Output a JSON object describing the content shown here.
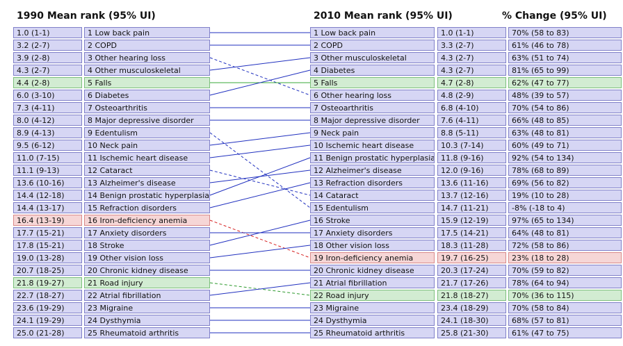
{
  "headers": {
    "left": "1990 Mean rank (95% UI)",
    "mid": "2010 Mean rank (95% UI)",
    "right": "% Change (95% UI)"
  },
  "colors": {
    "row_fill": "#d6d6f4",
    "row_border": "#8080c8",
    "highlight_green": "#d2ecd2",
    "highlight_red": "#f6d6d6",
    "line_up": "#1f2fbf",
    "line_down": "#1f2fbf",
    "line_falls": "#3aa83a",
    "line_red": "#d62020",
    "line_green": "#2e9a2e"
  },
  "chart_data": {
    "type": "table",
    "rows_1990": [
      {
        "rank": "1.0 (1-1)",
        "cause": "1 Low back pain",
        "to": 1,
        "hl": ""
      },
      {
        "rank": "3.2 (2-7)",
        "cause": "2 COPD",
        "to": 2,
        "hl": ""
      },
      {
        "rank": "3.9 (2-8)",
        "cause": "3 Other hearing loss",
        "to": 6,
        "hl": ""
      },
      {
        "rank": "4.3 (2-7)",
        "cause": "4 Other musculoskeletal",
        "to": 3,
        "hl": ""
      },
      {
        "rank": "4.4 (2-8)",
        "cause": "5 Falls",
        "to": 5,
        "hl": "green"
      },
      {
        "rank": "6.0 (3-10)",
        "cause": "6 Diabetes",
        "to": 4,
        "hl": ""
      },
      {
        "rank": "7.3 (4-11)",
        "cause": "7 Osteoarthritis",
        "to": 7,
        "hl": ""
      },
      {
        "rank": "8.0 (4-12)",
        "cause": "8 Major depressive disorder",
        "to": 8,
        "hl": ""
      },
      {
        "rank": "8.9 (4-13)",
        "cause": "9 Edentulism",
        "to": 15,
        "hl": ""
      },
      {
        "rank": "9.5 (6-12)",
        "cause": "10 Neck pain",
        "to": 9,
        "hl": ""
      },
      {
        "rank": "11.0 (7-15)",
        "cause": "11 Ischemic heart disease",
        "to": 10,
        "hl": ""
      },
      {
        "rank": "11.1 (9-13)",
        "cause": "12 Cataract",
        "to": 14,
        "hl": ""
      },
      {
        "rank": "13.6 (10-16)",
        "cause": "13 Alzheimer's disease",
        "to": 12,
        "hl": ""
      },
      {
        "rank": "14.4 (12-18)",
        "cause": "14 Benign prostatic hyperplasia",
        "to": 11,
        "hl": ""
      },
      {
        "rank": "14.4 (13-17)",
        "cause": "15 Refraction disorders",
        "to": 13,
        "hl": ""
      },
      {
        "rank": "16.4 (13-19)",
        "cause": "16 Iron-deficiency anemia",
        "to": 19,
        "hl": "red"
      },
      {
        "rank": "17.7 (15-21)",
        "cause": "17 Anxiety disorders",
        "to": 17,
        "hl": ""
      },
      {
        "rank": "17.8 (15-21)",
        "cause": "18 Stroke",
        "to": 16,
        "hl": ""
      },
      {
        "rank": "19.0 (13-28)",
        "cause": "19 Other vision loss",
        "to": 18,
        "hl": ""
      },
      {
        "rank": "20.7 (18-25)",
        "cause": "20 Chronic kidney disease",
        "to": 20,
        "hl": ""
      },
      {
        "rank": "21.8 (19-27)",
        "cause": "21 Road injury",
        "to": 22,
        "hl": "green"
      },
      {
        "rank": "22.7 (18-27)",
        "cause": "22 Atrial fibrillation",
        "to": 21,
        "hl": ""
      },
      {
        "rank": "23.6 (19-29)",
        "cause": "23 Migraine",
        "to": 23,
        "hl": ""
      },
      {
        "rank": "24.1 (19-29)",
        "cause": "24 Dysthymia",
        "to": 24,
        "hl": ""
      },
      {
        "rank": "25.0 (21-28)",
        "cause": "25 Rheumatoid arthritis",
        "to": 25,
        "hl": ""
      }
    ],
    "rows_2010": [
      {
        "cause": "1 Low back pain",
        "rank": "1.0 (1-1)",
        "change": "70% (58 to 83)",
        "hl": ""
      },
      {
        "cause": "2 COPD",
        "rank": "3.3 (2-7)",
        "change": "61% (46 to 78)",
        "hl": ""
      },
      {
        "cause": "3 Other musculoskeletal",
        "rank": "4.3 (2-7)",
        "change": "63% (51 to 74)",
        "hl": ""
      },
      {
        "cause": "4 Diabetes",
        "rank": "4.3 (2-7)",
        "change": "81% (65 to 99)",
        "hl": ""
      },
      {
        "cause": "5 Falls",
        "rank": "4.7 (2-8)",
        "change": "62% (47 to 77)",
        "hl": "green"
      },
      {
        "cause": "6 Other hearing loss",
        "rank": "4.8 (2-9)",
        "change": "48% (39 to 57)",
        "hl": ""
      },
      {
        "cause": "7 Osteoarthritis",
        "rank": "6.8 (4-10)",
        "change": "70% (54 to 86)",
        "hl": ""
      },
      {
        "cause": "8 Major depressive disorder",
        "rank": "7.6 (4-11)",
        "change": "66% (48 to 85)",
        "hl": ""
      },
      {
        "cause": "9 Neck pain",
        "rank": "8.8 (5-11)",
        "change": "63% (48 to 81)",
        "hl": ""
      },
      {
        "cause": "10 Ischemic heart disease",
        "rank": "10.3 (7-14)",
        "change": "60% (49 to 71)",
        "hl": ""
      },
      {
        "cause": "11 Benign prostatic hyperplasia",
        "rank": "11.8 (9-16)",
        "change": "92% (54 to 134)",
        "hl": ""
      },
      {
        "cause": "12 Alzheimer's disease",
        "rank": "12.0 (9-16)",
        "change": "78% (68 to 89)",
        "hl": ""
      },
      {
        "cause": "13 Refraction disorders",
        "rank": "13.6 (11-16)",
        "change": "69% (56 to 82)",
        "hl": ""
      },
      {
        "cause": "14 Cataract",
        "rank": "13.7 (12-16)",
        "change": "19% (10 to 28)",
        "hl": ""
      },
      {
        "cause": "15 Edentulism",
        "rank": "14.7 (11-21)",
        "change": "-8% (-18 to 4)",
        "hl": ""
      },
      {
        "cause": "16 Stroke",
        "rank": "15.9 (12-19)",
        "change": "97% (65 to 134)",
        "hl": ""
      },
      {
        "cause": "17 Anxiety disorders",
        "rank": "17.5 (14-21)",
        "change": "64% (48 to 81)",
        "hl": ""
      },
      {
        "cause": "18 Other vision loss",
        "rank": "18.3 (11-28)",
        "change": "72% (58 to 86)",
        "hl": ""
      },
      {
        "cause": "19 Iron-deficiency anemia",
        "rank": "19.7 (16-25)",
        "change": "23% (18 to 28)",
        "hl": "red"
      },
      {
        "cause": "20 Chronic kidney disease",
        "rank": "20.3 (17-24)",
        "change": "70% (59 to 82)",
        "hl": ""
      },
      {
        "cause": "21 Atrial fibrillation",
        "rank": "21.7 (17-26)",
        "change": "78% (64 to 94)",
        "hl": ""
      },
      {
        "cause": "22 Road injury",
        "rank": "21.8 (18-27)",
        "change": "70% (36 to 115)",
        "hl": "green"
      },
      {
        "cause": "23 Migraine",
        "rank": "23.4 (18-29)",
        "change": "70% (58 to 84)",
        "hl": ""
      },
      {
        "cause": "24 Dysthymia",
        "rank": "24.1 (18-30)",
        "change": "68% (57 to 81)",
        "hl": ""
      },
      {
        "cause": "25 Rheumatoid arthritis",
        "rank": "25.8 (21-30)",
        "change": "61% (47 to 75)",
        "hl": ""
      }
    ]
  }
}
